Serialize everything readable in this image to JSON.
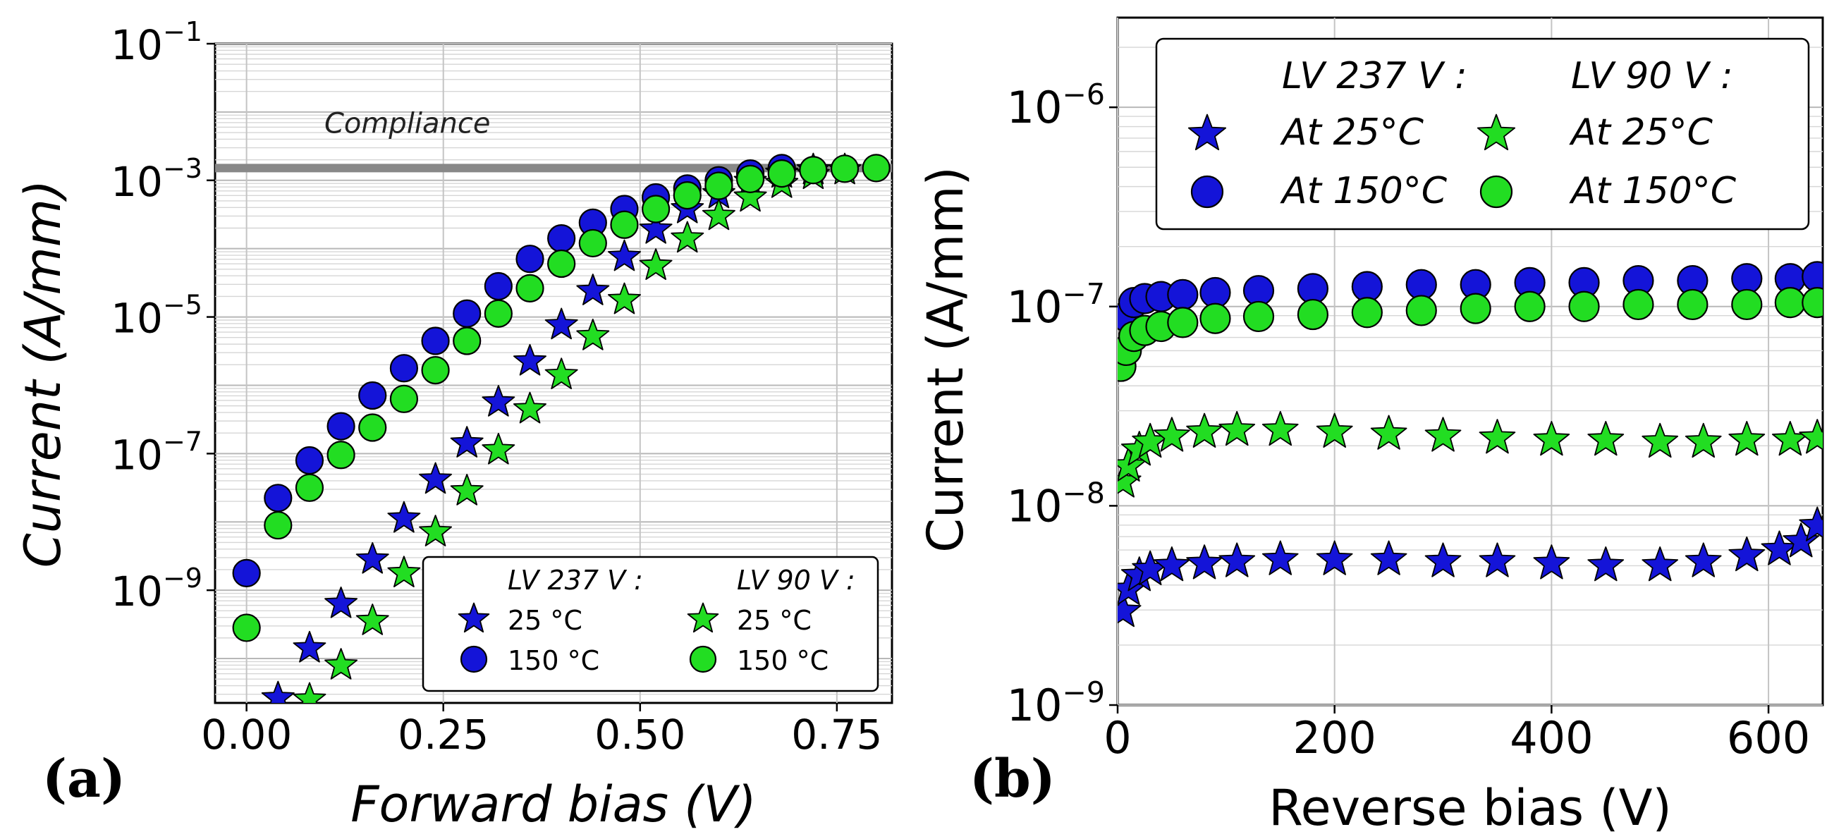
{
  "chart_data": [
    {
      "type": "scatter",
      "panel_label": "(a)",
      "title": "",
      "xlabel": "Forward bias (V)",
      "ylabel": "Current (A/mm)",
      "xlim": [
        -0.04,
        0.82
      ],
      "ylim_log10": [
        -10.65,
        -1.0
      ],
      "xscale": "linear",
      "yscale": "log",
      "x_ticks": [
        "0.00",
        "0.25",
        "0.50",
        "0.75"
      ],
      "x_tick_values": [
        0.0,
        0.25,
        0.5,
        0.75
      ],
      "y_tick_exponents": [
        -9,
        -7,
        -5,
        -3,
        -1
      ],
      "y_tick_base": "10",
      "y_tick_exps_text": [
        "−9",
        "−7",
        "−5",
        "−3",
        "−1"
      ],
      "grid": true,
      "compliance": {
        "label": "Compliance",
        "log10": -2.82
      },
      "legend_location": "lower-right",
      "legend_groups": [
        "LV 237 V  :",
        "LV 90 V  :"
      ],
      "series": [
        {
          "name": "LV 237 V 25 °C",
          "marker": "star",
          "color": "#1414d8",
          "x": [
            0.04,
            0.08,
            0.12,
            0.16,
            0.2,
            0.24,
            0.28,
            0.32,
            0.36,
            0.4,
            0.44,
            0.48,
            0.52,
            0.56,
            0.6,
            0.64,
            0.68,
            0.72
          ],
          "log10_y": [
            -10.58,
            -9.85,
            -9.2,
            -8.55,
            -7.95,
            -7.38,
            -6.85,
            -6.25,
            -5.65,
            -5.12,
            -4.62,
            -4.12,
            -3.72,
            -3.42,
            -3.2,
            -3.02,
            -2.9,
            -2.85
          ]
        },
        {
          "name": "LV 237 V 150 °C",
          "marker": "circle",
          "color": "#1414d8",
          "x": [
            0.0,
            0.04,
            0.08,
            0.12,
            0.16,
            0.2,
            0.24,
            0.28,
            0.32,
            0.36,
            0.4,
            0.44,
            0.48,
            0.52,
            0.56,
            0.6,
            0.64,
            0.68
          ],
          "log10_y": [
            -8.75,
            -7.65,
            -7.1,
            -6.6,
            -6.15,
            -5.75,
            -5.35,
            -4.95,
            -4.55,
            -4.15,
            -3.85,
            -3.62,
            -3.42,
            -3.25,
            -3.12,
            -3.0,
            -2.9,
            -2.82
          ]
        },
        {
          "name": "LV 90 V 25 °C",
          "marker": "star",
          "color": "#22dd22",
          "x": [
            0.08,
            0.12,
            0.16,
            0.2,
            0.24,
            0.28,
            0.32,
            0.36,
            0.4,
            0.44,
            0.48,
            0.52,
            0.56,
            0.6,
            0.64,
            0.68,
            0.72,
            0.76
          ],
          "log10_y": [
            -10.6,
            -10.1,
            -9.45,
            -8.75,
            -8.15,
            -7.55,
            -6.95,
            -6.35,
            -5.85,
            -5.28,
            -4.75,
            -4.25,
            -3.85,
            -3.52,
            -3.25,
            -3.05,
            -2.92,
            -2.85
          ]
        },
        {
          "name": "LV 90 V 150 °C",
          "marker": "circle",
          "color": "#22dd22",
          "x": [
            0.0,
            0.04,
            0.08,
            0.12,
            0.16,
            0.2,
            0.24,
            0.28,
            0.32,
            0.36,
            0.4,
            0.44,
            0.48,
            0.52,
            0.56,
            0.6,
            0.64,
            0.68,
            0.72,
            0.76,
            0.8
          ],
          "log10_y": [
            -9.55,
            -8.05,
            -7.5,
            -7.02,
            -6.62,
            -6.2,
            -5.78,
            -5.35,
            -4.95,
            -4.58,
            -4.22,
            -3.92,
            -3.65,
            -3.42,
            -3.22,
            -3.08,
            -2.98,
            -2.9,
            -2.85,
            -2.83,
            -2.82
          ]
        }
      ],
      "legend_entries": [
        {
          "label": "25 °C",
          "marker": "star",
          "color": "#1414d8"
        },
        {
          "label": "150 °C",
          "marker": "circle",
          "color": "#1414d8"
        },
        {
          "label": "25 °C",
          "marker": "star",
          "color": "#22dd22"
        },
        {
          "label": "150 °C",
          "marker": "circle",
          "color": "#22dd22"
        }
      ]
    },
    {
      "type": "scatter",
      "panel_label": "(b)",
      "title": "",
      "xlabel": "Reverse bias (V)",
      "ylabel": "Current (A/mm)",
      "xlim": [
        0,
        650
      ],
      "ylim_log10": [
        -9.0,
        -5.55
      ],
      "xscale": "linear",
      "yscale": "log",
      "x_ticks": [
        "0",
        "200",
        "400",
        "600"
      ],
      "x_tick_values": [
        0,
        200,
        400,
        600
      ],
      "y_tick_exponents": [
        -9,
        -8,
        -7,
        -6
      ],
      "y_tick_base": "10",
      "y_tick_exps_text": [
        "−9",
        "−8",
        "−7",
        "−6"
      ],
      "grid": true,
      "legend_location": "top-right",
      "legend_groups": [
        "LV 237 V  :",
        "LV 90 V  :"
      ],
      "series": [
        {
          "name": "LV 237 V At 25°C",
          "marker": "star",
          "color": "#1414d8",
          "x": [
            5,
            10,
            20,
            30,
            50,
            80,
            110,
            150,
            200,
            250,
            300,
            350,
            400,
            450,
            500,
            540,
            580,
            610,
            630,
            645
          ],
          "log10_y": [
            -8.53,
            -8.42,
            -8.35,
            -8.32,
            -8.3,
            -8.29,
            -8.28,
            -8.27,
            -8.27,
            -8.27,
            -8.28,
            -8.28,
            -8.29,
            -8.3,
            -8.3,
            -8.28,
            -8.25,
            -8.22,
            -8.18,
            -8.1
          ]
        },
        {
          "name": "LV 237 V At 150°C",
          "marker": "circle",
          "color": "#1414d8",
          "x": [
            3,
            8,
            15,
            25,
            40,
            60,
            90,
            130,
            180,
            230,
            280,
            330,
            380,
            430,
            480,
            530,
            580,
            620,
            645
          ],
          "log10_y": [
            -7.25,
            -7.05,
            -6.98,
            -6.96,
            -6.95,
            -6.94,
            -6.93,
            -6.92,
            -6.91,
            -6.9,
            -6.89,
            -6.89,
            -6.88,
            -6.88,
            -6.87,
            -6.87,
            -6.86,
            -6.86,
            -6.85
          ]
        },
        {
          "name": "LV 90 V At 25°C",
          "marker": "star",
          "color": "#22dd22",
          "x": [
            5,
            10,
            20,
            30,
            50,
            80,
            110,
            150,
            200,
            250,
            300,
            350,
            400,
            450,
            500,
            540,
            580,
            620,
            645
          ],
          "log10_y": [
            -7.88,
            -7.8,
            -7.72,
            -7.68,
            -7.65,
            -7.63,
            -7.62,
            -7.62,
            -7.63,
            -7.64,
            -7.65,
            -7.66,
            -7.67,
            -7.67,
            -7.68,
            -7.68,
            -7.67,
            -7.67,
            -7.66
          ]
        },
        {
          "name": "LV 90 V At 150°C",
          "marker": "circle",
          "color": "#22dd22",
          "x": [
            3,
            8,
            15,
            25,
            40,
            60,
            90,
            130,
            180,
            230,
            280,
            330,
            380,
            430,
            480,
            530,
            580,
            620,
            645
          ],
          "log10_y": [
            -7.3,
            -7.22,
            -7.15,
            -7.12,
            -7.1,
            -7.08,
            -7.06,
            -7.05,
            -7.04,
            -7.03,
            -7.02,
            -7.01,
            -7.0,
            -7.0,
            -6.99,
            -6.99,
            -6.99,
            -6.98,
            -6.98
          ]
        }
      ],
      "legend_entries": [
        {
          "label": "At 25°C",
          "marker": "star",
          "color": "#1414d8"
        },
        {
          "label": "At 150°C",
          "marker": "circle",
          "color": "#1414d8"
        },
        {
          "label": "At 25°C",
          "marker": "star",
          "color": "#22dd22"
        },
        {
          "label": "At 150°C",
          "marker": "circle",
          "color": "#22dd22"
        }
      ]
    }
  ]
}
